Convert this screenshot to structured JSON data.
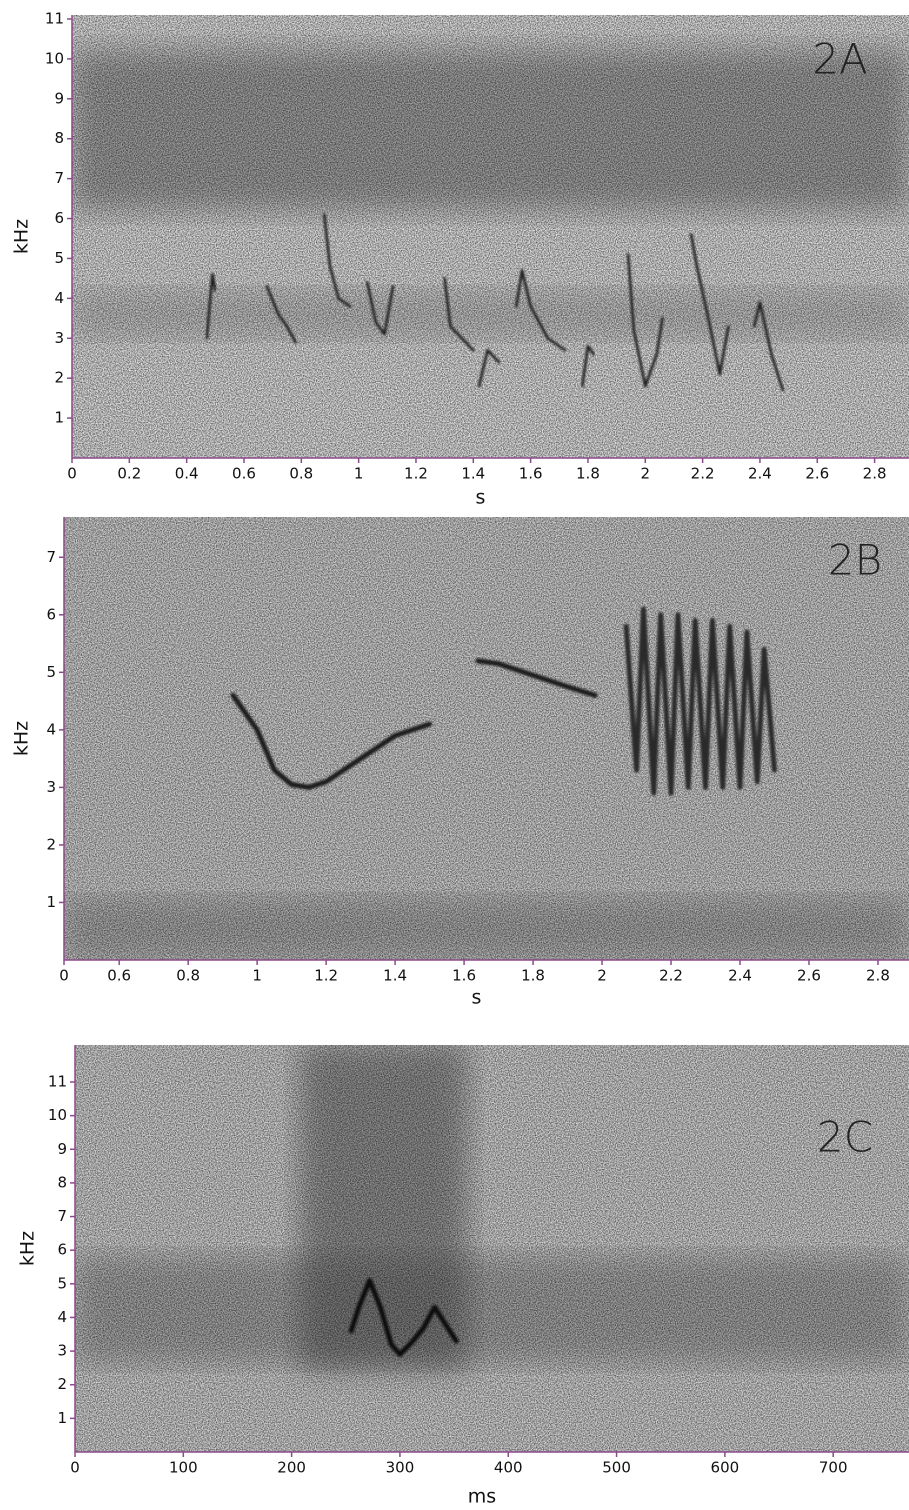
{
  "chart_data": [
    {
      "type": "spectrogram",
      "label": "2A",
      "xlabel": "s",
      "ylabel": "kHz",
      "xlim": [
        0,
        2.92
      ],
      "ylim": [
        0,
        11.1
      ],
      "xticks": [
        0,
        0.2,
        0.4,
        0.6,
        0.8,
        1,
        1.2,
        1.4,
        1.6,
        1.8,
        2,
        2.2,
        2.4,
        2.6,
        2.8
      ],
      "yticks": [
        1,
        2,
        3,
        4,
        5,
        6,
        7,
        8,
        9,
        10,
        11
      ],
      "series": [
        {
          "color": "#1a1a1a",
          "x": [
            0.47,
            0.49,
            0.5
          ],
          "values": [
            3.0,
            4.6,
            4.2
          ]
        },
        {
          "color": "#1a1a1a",
          "x": [
            0.68,
            0.72,
            0.75,
            0.78
          ],
          "values": [
            4.3,
            3.6,
            3.3,
            2.9
          ]
        },
        {
          "color": "#1a1a1a",
          "x": [
            0.88,
            0.9,
            0.93,
            0.97
          ],
          "values": [
            6.1,
            4.8,
            4.0,
            3.8
          ]
        },
        {
          "color": "#1a1a1a",
          "x": [
            1.03,
            1.06,
            1.09,
            1.12
          ],
          "values": [
            4.4,
            3.4,
            3.1,
            4.3
          ]
        },
        {
          "color": "#1a1a1a",
          "x": [
            1.3,
            1.32,
            1.36,
            1.4
          ],
          "values": [
            4.5,
            3.3,
            3.0,
            2.7
          ]
        },
        {
          "color": "#1a1a1a",
          "x": [
            1.42,
            1.45,
            1.49
          ],
          "values": [
            1.8,
            2.7,
            2.4
          ]
        },
        {
          "color": "#1a1a1a",
          "x": [
            1.55,
            1.57,
            1.6,
            1.66,
            1.72
          ],
          "values": [
            3.8,
            4.7,
            3.8,
            3.0,
            2.7
          ]
        },
        {
          "color": "#1a1a1a",
          "x": [
            1.78,
            1.8,
            1.82
          ],
          "values": [
            1.8,
            2.8,
            2.6
          ]
        },
        {
          "color": "#1a1a1a",
          "x": [
            1.94,
            1.96,
            2.0,
            2.04,
            2.06
          ],
          "values": [
            5.1,
            3.2,
            1.8,
            2.6,
            3.5
          ]
        },
        {
          "color": "#1a1a1a",
          "x": [
            2.16,
            2.18,
            2.22,
            2.26,
            2.29
          ],
          "values": [
            5.6,
            4.8,
            3.5,
            2.1,
            3.3
          ]
        },
        {
          "color": "#1a1a1a",
          "x": [
            2.38,
            2.4,
            2.44,
            2.48
          ],
          "values": [
            3.3,
            3.9,
            2.6,
            1.7
          ]
        }
      ]
    },
    {
      "type": "spectrogram",
      "label": "2B",
      "xlabel": "s",
      "ylabel": "kHz",
      "xlim": [
        0.44,
        2.89
      ],
      "ylim": [
        0,
        7.7
      ],
      "xticks": [
        {
          "value": 0.44,
          "label": "0"
        },
        0.6,
        0.8,
        1,
        1.2,
        1.4,
        1.6,
        1.8,
        2,
        2.2,
        2.4,
        2.6,
        2.8
      ],
      "yticks": [
        1,
        2,
        3,
        4,
        5,
        6,
        7
      ],
      "series": [
        {
          "color": "#1a1a1a",
          "x": [
            0.93,
            1.0,
            1.05,
            1.1,
            1.15,
            1.2,
            1.3,
            1.4,
            1.5
          ],
          "values": [
            4.6,
            4.0,
            3.3,
            3.05,
            3.0,
            3.1,
            3.5,
            3.9,
            4.1
          ]
        },
        {
          "color": "#1a1a1a",
          "x": [
            1.64,
            1.7,
            1.8,
            1.9,
            1.98
          ],
          "values": [
            5.2,
            5.15,
            4.95,
            4.75,
            4.6
          ]
        },
        {
          "color": "#2a2a2a",
          "x": [
            2.07,
            2.1,
            2.12,
            2.15,
            2.17,
            2.2,
            2.22,
            2.25,
            2.27,
            2.3,
            2.32,
            2.35,
            2.37,
            2.4,
            2.42,
            2.45,
            2.47,
            2.5
          ],
          "values": [
            5.8,
            3.3,
            6.1,
            2.9,
            6.0,
            2.9,
            6.0,
            3.0,
            5.9,
            3.0,
            5.9,
            3.0,
            5.8,
            3.0,
            5.7,
            3.1,
            5.4,
            3.3
          ]
        }
      ]
    },
    {
      "type": "spectrogram",
      "label": "2C",
      "xlabel": "ms",
      "ylabel": "kHz",
      "xlim": [
        0,
        770
      ],
      "ylim": [
        0,
        12.1
      ],
      "xticks": [
        0,
        100,
        200,
        300,
        400,
        500,
        600,
        700
      ],
      "yticks": [
        1,
        2,
        3,
        4,
        5,
        6,
        7,
        8,
        9,
        10,
        11
      ],
      "series": [
        {
          "color": "#111111",
          "x": [
            255,
            262,
            272,
            282,
            292,
            300,
            312,
            322,
            332,
            342,
            352
          ],
          "values": [
            3.6,
            4.3,
            5.1,
            4.3,
            3.2,
            2.9,
            3.3,
            3.7,
            4.3,
            3.8,
            3.3
          ]
        }
      ]
    }
  ]
}
